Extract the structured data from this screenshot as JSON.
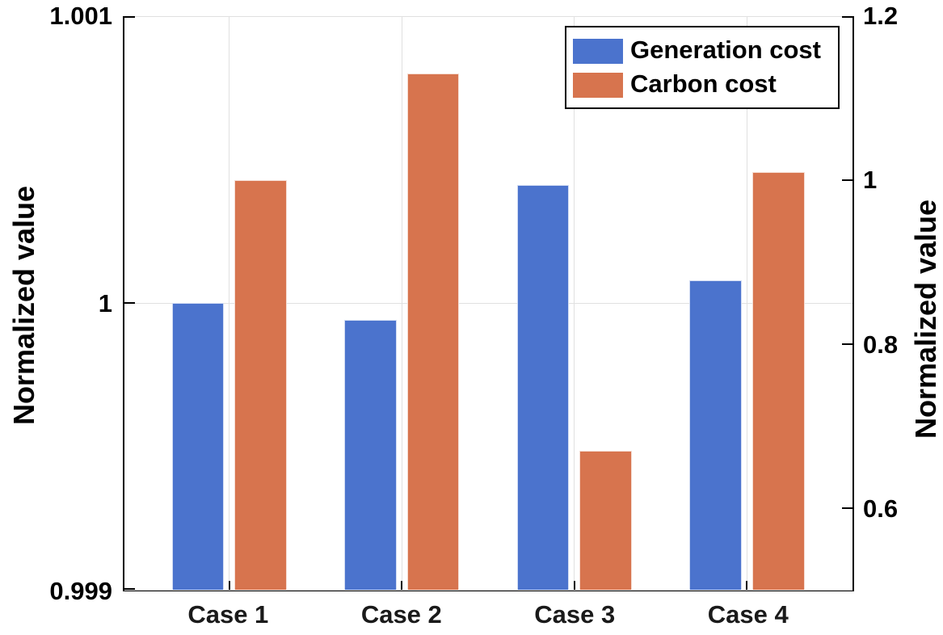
{
  "figure": {
    "background": "#ffffff",
    "axis_color": "#000000",
    "grid_color": "#e0e0e0",
    "tick_label_color": "#000000",
    "x_label_color": "#1a1a1a"
  },
  "chart_data": {
    "type": "bar",
    "title": "",
    "categories": [
      "Case 1",
      "Case 2",
      "Case 3",
      "Case 4"
    ],
    "series": [
      {
        "name": "Generation cost",
        "axis": "left",
        "color": "#4b73cd",
        "values": [
          1.0,
          0.99994,
          1.00041,
          1.00008
        ]
      },
      {
        "name": "Carbon cost",
        "axis": "right",
        "color": "#d7744e",
        "values": [
          1.0,
          1.13,
          0.67,
          1.01
        ]
      }
    ],
    "left_axis": {
      "label": "Normalized value",
      "min": 0.999,
      "max": 1.001,
      "ticks": [
        1.001,
        1,
        0.999
      ],
      "tick_labels": [
        "1.001",
        "1",
        "0.999"
      ]
    },
    "right_axis": {
      "label": "Normalized value",
      "min": 0.5,
      "max": 1.2,
      "ticks": [
        1.2,
        1,
        0.8,
        0.6
      ],
      "tick_labels": [
        "1.2",
        "1",
        "0.8",
        "0.6"
      ]
    },
    "grid": "horizontal gridlines from left-axis ticks, vertical gridlines at category centers",
    "legend_position": "top-right-inside"
  },
  "legend": {
    "items": [
      {
        "label": "Generation cost",
        "color": "#4b73cd"
      },
      {
        "label": "Carbon cost",
        "color": "#d7744e"
      }
    ]
  }
}
